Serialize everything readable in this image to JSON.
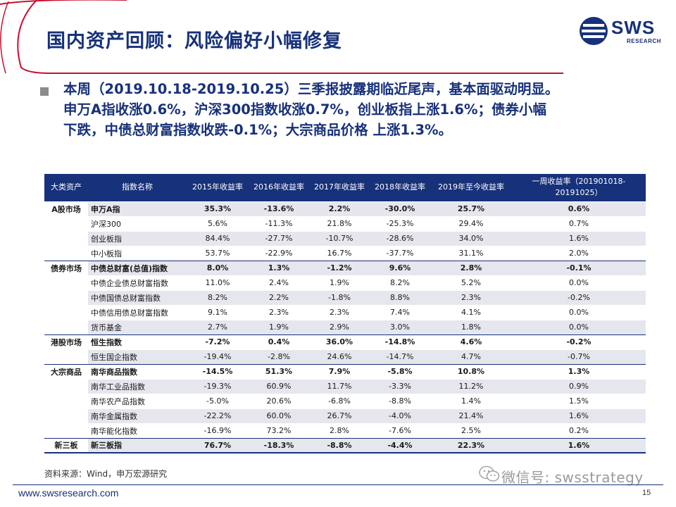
{
  "header": {
    "title": "国内资产回顾：风险偏好小幅修复",
    "logo_text": "SWS",
    "logo_subtext": "RESEARCH"
  },
  "summary": {
    "lines": [
      "本周（2019.10.18-2019.10.25）三季报披露期临近尾声，基本面驱动明显。",
      "申万A指收涨0.6%，沪深300指数收涨0.7%，创业板指上涨1.6%；债券小幅",
      "下跌，中债总财富指数收跌-0.1%；大宗商品价格 上涨1.3%。"
    ]
  },
  "table": {
    "headers": [
      "大类资产",
      "指数名称",
      "2015年收益率",
      "2016年收益率",
      "2017年收益率",
      "2018年收益率",
      "2019年至今收益率",
      "一周收益率（201901018-20191025）"
    ],
    "rows": [
      {
        "category": "A股市场",
        "name": "申万A指",
        "y2015": "35.3%",
        "y2016": "-13.6%",
        "y2017": "2.2%",
        "y2018": "-30.0%",
        "ytd": "25.7%",
        "week": "0.6%"
      },
      {
        "category": "",
        "name": "沪深300",
        "y2015": "5.6%",
        "y2016": "-11.3%",
        "y2017": "21.8%",
        "y2018": "-25.3%",
        "ytd": "29.4%",
        "week": "0.7%"
      },
      {
        "category": "",
        "name": "创业板指",
        "y2015": "84.4%",
        "y2016": "-27.7%",
        "y2017": "-10.7%",
        "y2018": "-28.6%",
        "ytd": "34.0%",
        "week": "1.6%"
      },
      {
        "category": "",
        "name": "中小板指",
        "y2015": "53.7%",
        "y2016": "-22.9%",
        "y2017": "16.7%",
        "y2018": "-37.7%",
        "ytd": "31.1%",
        "week": "2.0%"
      },
      {
        "category": "债券市场",
        "name": "中债总财富(总值)指数",
        "y2015": "8.0%",
        "y2016": "1.3%",
        "y2017": "-1.2%",
        "y2018": "9.6%",
        "ytd": "2.8%",
        "week": "-0.1%"
      },
      {
        "category": "",
        "name": "中债企业债总财富指数",
        "y2015": "11.0%",
        "y2016": "2.4%",
        "y2017": "1.9%",
        "y2018": "8.2%",
        "ytd": "5.2%",
        "week": "0.0%"
      },
      {
        "category": "",
        "name": "中债国债总财富指数",
        "y2015": "8.2%",
        "y2016": "2.2%",
        "y2017": "-1.8%",
        "y2018": "8.8%",
        "ytd": "2.3%",
        "week": "-0.2%"
      },
      {
        "category": "",
        "name": "中债信用债总财富指数",
        "y2015": "9.1%",
        "y2016": "2.3%",
        "y2017": "2.3%",
        "y2018": "7.4%",
        "ytd": "4.1%",
        "week": "0.0%"
      },
      {
        "category": "",
        "name": "货币基金",
        "y2015": "2.7%",
        "y2016": "1.9%",
        "y2017": "2.9%",
        "y2018": "3.0%",
        "ytd": "1.8%",
        "week": "0.0%"
      },
      {
        "category": "港股市场",
        "name": "恒生指数",
        "y2015": "-7.2%",
        "y2016": "0.4%",
        "y2017": "36.0%",
        "y2018": "-14.8%",
        "ytd": "4.6%",
        "week": "-0.2%"
      },
      {
        "category": "",
        "name": "恒生国企指数",
        "y2015": "-19.4%",
        "y2016": "-2.8%",
        "y2017": "24.6%",
        "y2018": "-14.7%",
        "ytd": "4.7%",
        "week": "-0.7%"
      },
      {
        "category": "大宗商品",
        "name": "南华商品指数",
        "y2015": "-14.5%",
        "y2016": "51.3%",
        "y2017": "7.9%",
        "y2018": "-5.8%",
        "ytd": "10.8%",
        "week": "1.3%"
      },
      {
        "category": "",
        "name": "南华工业品指数",
        "y2015": "-19.3%",
        "y2016": "60.9%",
        "y2017": "11.7%",
        "y2018": "-3.3%",
        "ytd": "11.2%",
        "week": "0.9%"
      },
      {
        "category": "",
        "name": "南华农产品指数",
        "y2015": "-5.0%",
        "y2016": "20.6%",
        "y2017": "-6.8%",
        "y2018": "-8.8%",
        "ytd": "1.4%",
        "week": "1.5%"
      },
      {
        "category": "",
        "name": "南华金属指数",
        "y2015": "-22.2%",
        "y2016": "60.0%",
        "y2017": "26.7%",
        "y2018": "-4.0%",
        "ytd": "21.4%",
        "week": "1.6%"
      },
      {
        "category": "",
        "name": "南华能化指数",
        "y2015": "-16.9%",
        "y2016": "73.2%",
        "y2017": "2.8%",
        "y2018": "-7.6%",
        "ytd": "2.5%",
        "week": "0.2%"
      },
      {
        "category": "新三板",
        "name": "新三板指",
        "y2015": "76.7%",
        "y2016": "-18.3%",
        "y2017": "-8.8%",
        "y2018": "-4.4%",
        "ytd": "22.3%",
        "week": "1.6%"
      }
    ]
  },
  "footer": {
    "source": "资料来源：Wind，申万宏源研究",
    "website": "www.swsresearch.com",
    "page_number": "15",
    "wechat": "微信号: swsstrategy"
  },
  "colors": {
    "brand": "#17317a",
    "accent_red": "#c8102e",
    "row_shade": "#e6e6ee",
    "bullet": "#8c8c8c"
  }
}
